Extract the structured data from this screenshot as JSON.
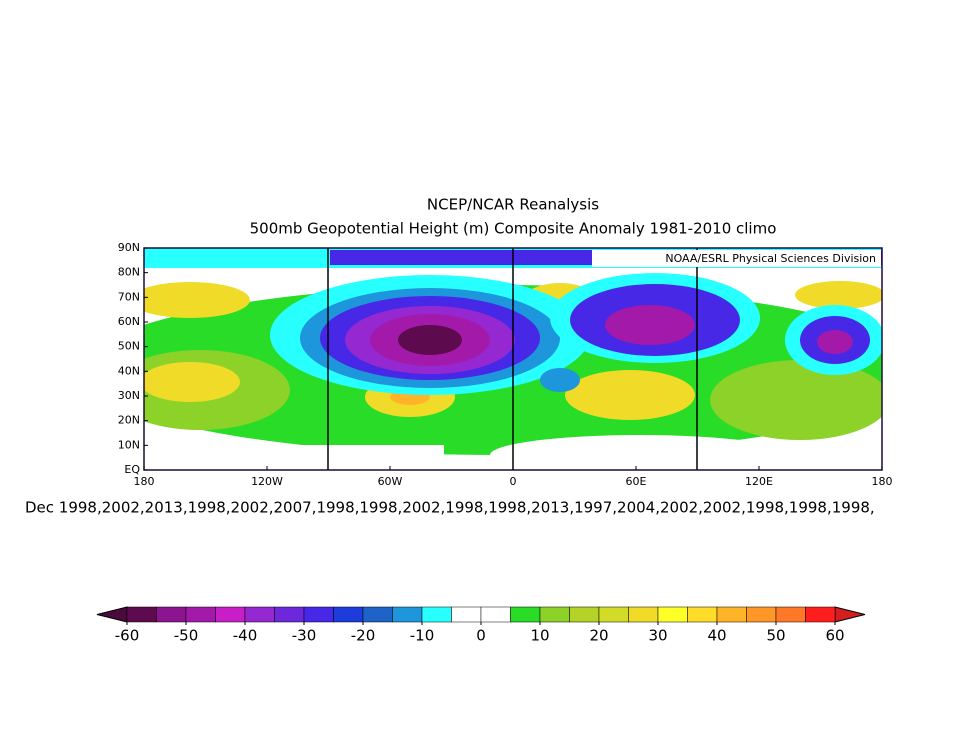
{
  "title": [
    "NCEP/NCAR Reanalysis",
    "500mb Geopotential Height (m) Composite Anomaly 1981-2010 climo"
  ],
  "credit": "NOAA/ESRL Physical Sciences Division",
  "map": {
    "lat_labels": [
      "90N",
      "80N",
      "70N",
      "60N",
      "50N",
      "40N",
      "30N",
      "20N",
      "10N",
      "EQ"
    ],
    "lon_labels": [
      "180",
      "120W",
      "60W",
      "0",
      "60E",
      "120E",
      "180"
    ]
  },
  "caption": "Dec 1998,2002,2013,1998,2002,2007,1998,1998,2002,1998,1998,2013,1997,2004,2002,2002,1998,1998,1998,",
  "colorbar": {
    "ticks": [
      -60,
      -50,
      -40,
      -30,
      -20,
      -10,
      0,
      10,
      20,
      30,
      40,
      50,
      60
    ],
    "colors": [
      "#5e0a4e",
      "#8c1491",
      "#a31aaa",
      "#c81ec8",
      "#9628d2",
      "#6e28dc",
      "#4628e6",
      "#1e3cdc",
      "#1e64c8",
      "#1e96dc",
      "#28ffff",
      "#ffffff",
      "#ffffff",
      "#28dc28",
      "#8cd228",
      "#b4d228",
      "#d2dc28",
      "#f0dc28",
      "#ffff28",
      "#ffdc28",
      "#ffb428",
      "#ff9628",
      "#ff7828",
      "#ff1e1e"
    ],
    "under_color": "#4b0a3c",
    "over_color": "#d21e1e"
  }
}
